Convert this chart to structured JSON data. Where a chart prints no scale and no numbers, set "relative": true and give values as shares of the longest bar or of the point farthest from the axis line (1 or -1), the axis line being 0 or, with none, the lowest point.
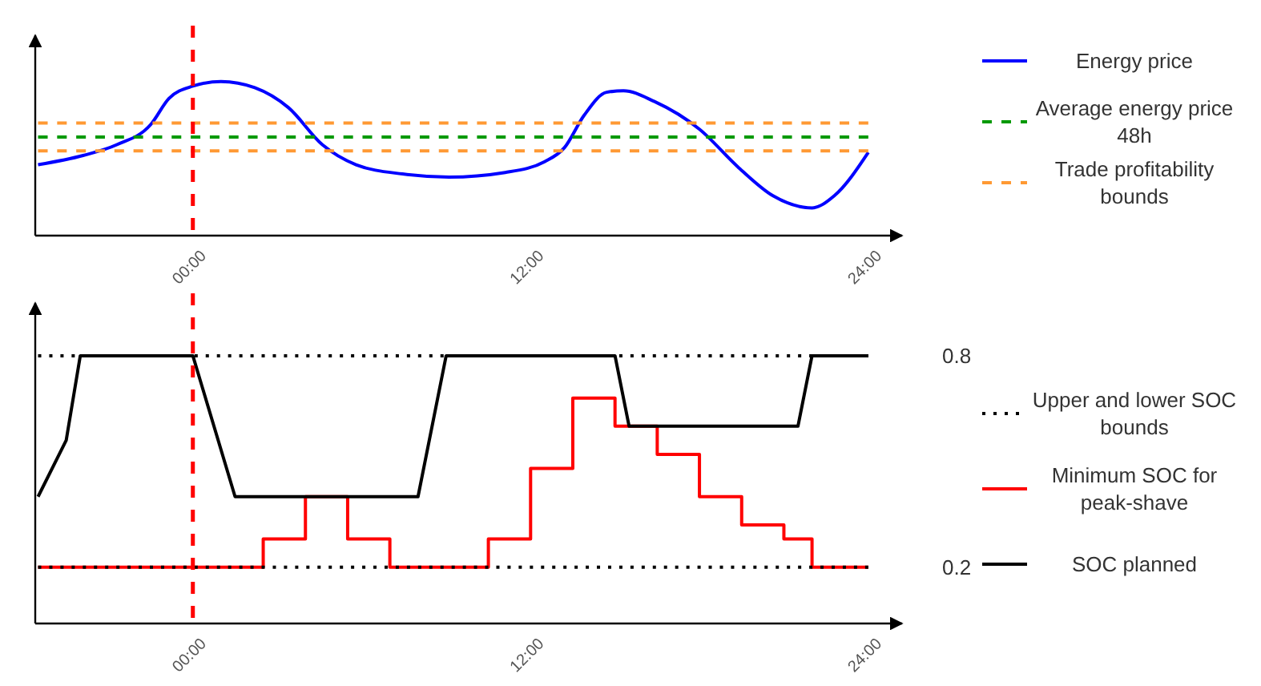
{
  "chart_data": [
    {
      "type": "line",
      "relative": true,
      "legend": "right",
      "tick_labels": "x",
      "xlim": [
        -5.6,
        25.2
      ],
      "xticks": [
        {
          "value": 0,
          "label": "00:00"
        },
        {
          "value": 12,
          "label": "12:00"
        },
        {
          "value": 24,
          "label": "24:00"
        }
      ],
      "ref_lines": [
        {
          "axis": "x",
          "value": 0,
          "color": "#ff0000",
          "line_style": "dashed"
        }
      ],
      "series": [
        {
          "name": "Energy price",
          "color": "#0000ff",
          "line_style": "solid",
          "x": [
            -5.5,
            -3.9,
            -2.7,
            -1.5,
            -0.85,
            0,
            1,
            2.2,
            3.4,
            4.6,
            5.8,
            7.45,
            9.1,
            11.1,
            12.5,
            13.2,
            13.9,
            14.7,
            15.3,
            16.4,
            18,
            19.4,
            20.6,
            22,
            22.8,
            24
          ],
          "values": [
            0.46,
            0.52,
            0.59,
            0.72,
            0.89,
            0.97,
            1,
            0.96,
            0.83,
            0.59,
            0.46,
            0.4,
            0.38,
            0.41,
            0.48,
            0.57,
            0.78,
            0.93,
            0.94,
            0.87,
            0.69,
            0.44,
            0.26,
            0.18,
            0.26,
            0.54
          ]
        },
        {
          "name": "Average energy price 48h",
          "color": "#009900",
          "line_style": "dashed",
          "x": [
            -5.5,
            24
          ],
          "values": [
            0.64,
            0.64
          ]
        },
        {
          "name": "Trade profitability bounds",
          "color": "#ff9933",
          "line_style": "dashed",
          "x": [
            -5.5,
            24
          ],
          "values": [
            0.73,
            0.73
          ]
        },
        {
          "color": "#ff9933",
          "line_style": "dashed",
          "x": [
            -5.5,
            24
          ],
          "values": [
            0.55,
            0.55
          ]
        }
      ]
    },
    {
      "type": "line",
      "legend": "right",
      "xlim": [
        -5.6,
        25.2
      ],
      "xticks": [
        {
          "value": 0,
          "label": "00:00"
        },
        {
          "value": 12,
          "label": "12:00"
        },
        {
          "value": 24,
          "label": "24:00"
        }
      ],
      "ylim": [
        0.04,
        0.95
      ],
      "yticks": [
        0.2,
        0.8
      ],
      "ref_lines": [
        {
          "axis": "x",
          "value": 0,
          "color": "#ff0000",
          "line_style": "dashed"
        }
      ],
      "series": [
        {
          "name": "Upper and lower SOC bounds",
          "color": "#000000",
          "line_style": "dotted",
          "x": [
            -5.5,
            24
          ],
          "values": [
            0.8,
            0.8
          ]
        },
        {
          "color": "#000000",
          "line_style": "dotted",
          "x": [
            -5.5,
            24
          ],
          "values": [
            0.2,
            0.2
          ]
        },
        {
          "name": "Minimum SOC for peak-shave",
          "type": "step",
          "color": "#ff0000",
          "line_style": "solid",
          "x": [
            -5.5,
            2.5,
            4,
            5.5,
            7,
            10.5,
            12,
            13.5,
            15,
            16.5,
            18,
            19.5,
            21,
            22,
            24
          ],
          "values": [
            0.2,
            0.28,
            0.4,
            0.28,
            0.2,
            0.28,
            0.48,
            0.68,
            0.6,
            0.52,
            0.4,
            0.32,
            0.28,
            0.2,
            0.2
          ]
        },
        {
          "name": "SOC planned",
          "color": "#000000",
          "line_style": "solid",
          "x": [
            -5.5,
            -4.5,
            -4,
            0,
            1.5,
            8,
            9,
            15,
            15.5,
            21.5,
            22,
            24
          ],
          "values": [
            0.4,
            0.56,
            0.8,
            0.8,
            0.4,
            0.4,
            0.8,
            0.8,
            0.6,
            0.6,
            0.8,
            0.8
          ]
        }
      ]
    }
  ]
}
